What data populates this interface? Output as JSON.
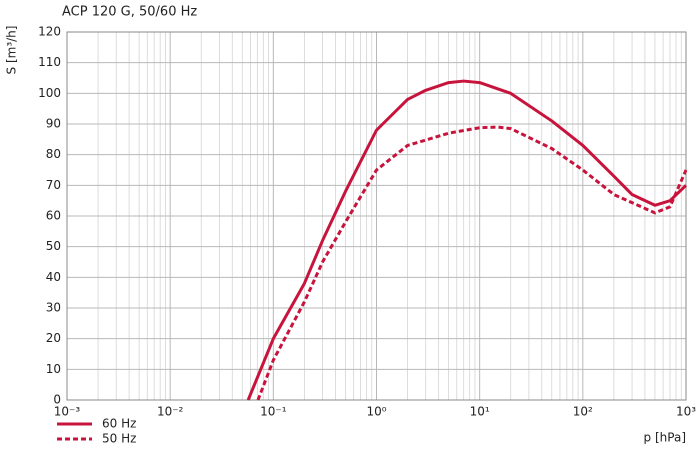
{
  "chart_data": {
    "type": "line",
    "title": "ACP 120 G, 50/60 Hz",
    "y_label": "S [m³/h]",
    "x_label": "p [hPa]",
    "log_x": true,
    "grid": true,
    "minor_grid": true,
    "legend": "bottom-left",
    "xlim": [
      0.001,
      1000
    ],
    "ylim": [
      0,
      120
    ],
    "xticks": [
      {
        "value": 0.001,
        "label": "10⁻³"
      },
      {
        "value": 0.01,
        "label": "10⁻²"
      },
      {
        "value": 0.1,
        "label": "10⁻¹"
      },
      {
        "value": 1,
        "label": "10⁰"
      },
      {
        "value": 10,
        "label": "10¹"
      },
      {
        "value": 100,
        "label": "10²"
      },
      {
        "value": 1000,
        "label": "10³"
      }
    ],
    "yticks": [
      0,
      10,
      20,
      30,
      40,
      50,
      60,
      70,
      80,
      90,
      100,
      110,
      120
    ],
    "series": [
      {
        "name": "60 Hz",
        "color": "#c8143c",
        "style": "solid",
        "x": [
          0.057,
          0.1,
          0.2,
          0.3,
          0.5,
          1,
          2,
          3,
          5,
          7,
          10,
          20,
          50,
          100,
          200,
          300,
          500,
          700,
          1000
        ],
        "values": [
          0,
          20,
          38,
          52,
          68,
          88,
          98,
          101,
          103.5,
          104,
          103.5,
          100,
          91,
          83,
          73,
          67,
          63.5,
          65,
          70
        ]
      },
      {
        "name": "50 Hz",
        "color": "#c8143c",
        "style": "dashed",
        "x": [
          0.071,
          0.1,
          0.2,
          0.3,
          0.5,
          1,
          2,
          5,
          10,
          15,
          20,
          50,
          100,
          200,
          500,
          700,
          1000
        ],
        "values": [
          0,
          13,
          32,
          45,
          58,
          75,
          83,
          87,
          88.8,
          89,
          88.5,
          82,
          75,
          67,
          61,
          63,
          75
        ]
      }
    ]
  }
}
